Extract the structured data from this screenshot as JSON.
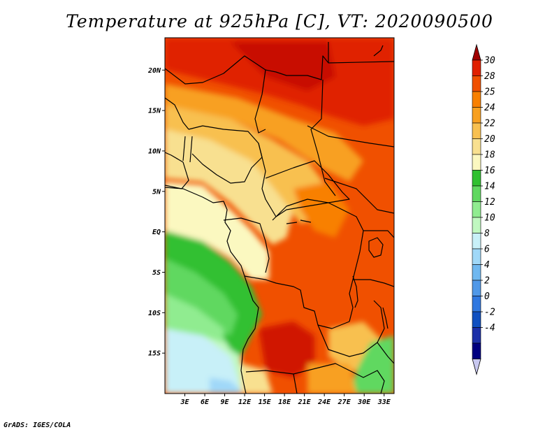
{
  "title": "Temperature at 925hPa [C], VT: 2020090500",
  "credit": "GrADS: IGES/COLA",
  "map": {
    "lon_range": [
      0,
      34.5
    ],
    "lat_range": [
      -20,
      24
    ],
    "lat_ticks": [
      {
        "value": 20,
        "label": "20N"
      },
      {
        "value": 15,
        "label": "15N"
      },
      {
        "value": 10,
        "label": "10N"
      },
      {
        "value": 5,
        "label": "5N"
      },
      {
        "value": 0,
        "label": "EQ"
      },
      {
        "value": -5,
        "label": "5S"
      },
      {
        "value": -10,
        "label": "10S"
      },
      {
        "value": -15,
        "label": "15S"
      }
    ],
    "lon_ticks": [
      {
        "value": 3,
        "label": "3E"
      },
      {
        "value": 6,
        "label": "6E"
      },
      {
        "value": 9,
        "label": "9E"
      },
      {
        "value": 12,
        "label": "12E"
      },
      {
        "value": 15,
        "label": "15E"
      },
      {
        "value": 18,
        "label": "18E"
      },
      {
        "value": 21,
        "label": "21E"
      },
      {
        "value": 24,
        "label": "24E"
      },
      {
        "value": 27,
        "label": "27E"
      },
      {
        "value": 30,
        "label": "30E"
      },
      {
        "value": 33,
        "label": "33E"
      }
    ]
  },
  "colorbar": {
    "levels": [
      {
        "label": "30",
        "color": "#a00000"
      },
      {
        "label": "28",
        "color": "#e02000"
      },
      {
        "label": "25",
        "color": "#f05000"
      },
      {
        "label": "24",
        "color": "#f88000"
      },
      {
        "label": "22",
        "color": "#f8a020"
      },
      {
        "label": "20",
        "color": "#f8c050"
      },
      {
        "label": "18",
        "color": "#f8e090"
      },
      {
        "label": "16",
        "color": "#fbf8c0"
      },
      {
        "label": "14",
        "color": "#30c030"
      },
      {
        "label": "12",
        "color": "#60d860"
      },
      {
        "label": "10",
        "color": "#90ec90"
      },
      {
        "label": "8",
        "color": "#c0f8c0"
      },
      {
        "label": "6",
        "color": "#c8f0f8"
      },
      {
        "label": "4",
        "color": "#a0d8f8"
      },
      {
        "label": "2",
        "color": "#70b8f0"
      },
      {
        "label": "0",
        "color": "#5098e8"
      },
      {
        "label": "-2",
        "color": "#3078e0"
      },
      {
        "label": "-4",
        "color": "#1050c0"
      }
    ],
    "bottom_colors": [
      "#1c30a8",
      "#000080",
      "#c8c8f0"
    ]
  }
}
